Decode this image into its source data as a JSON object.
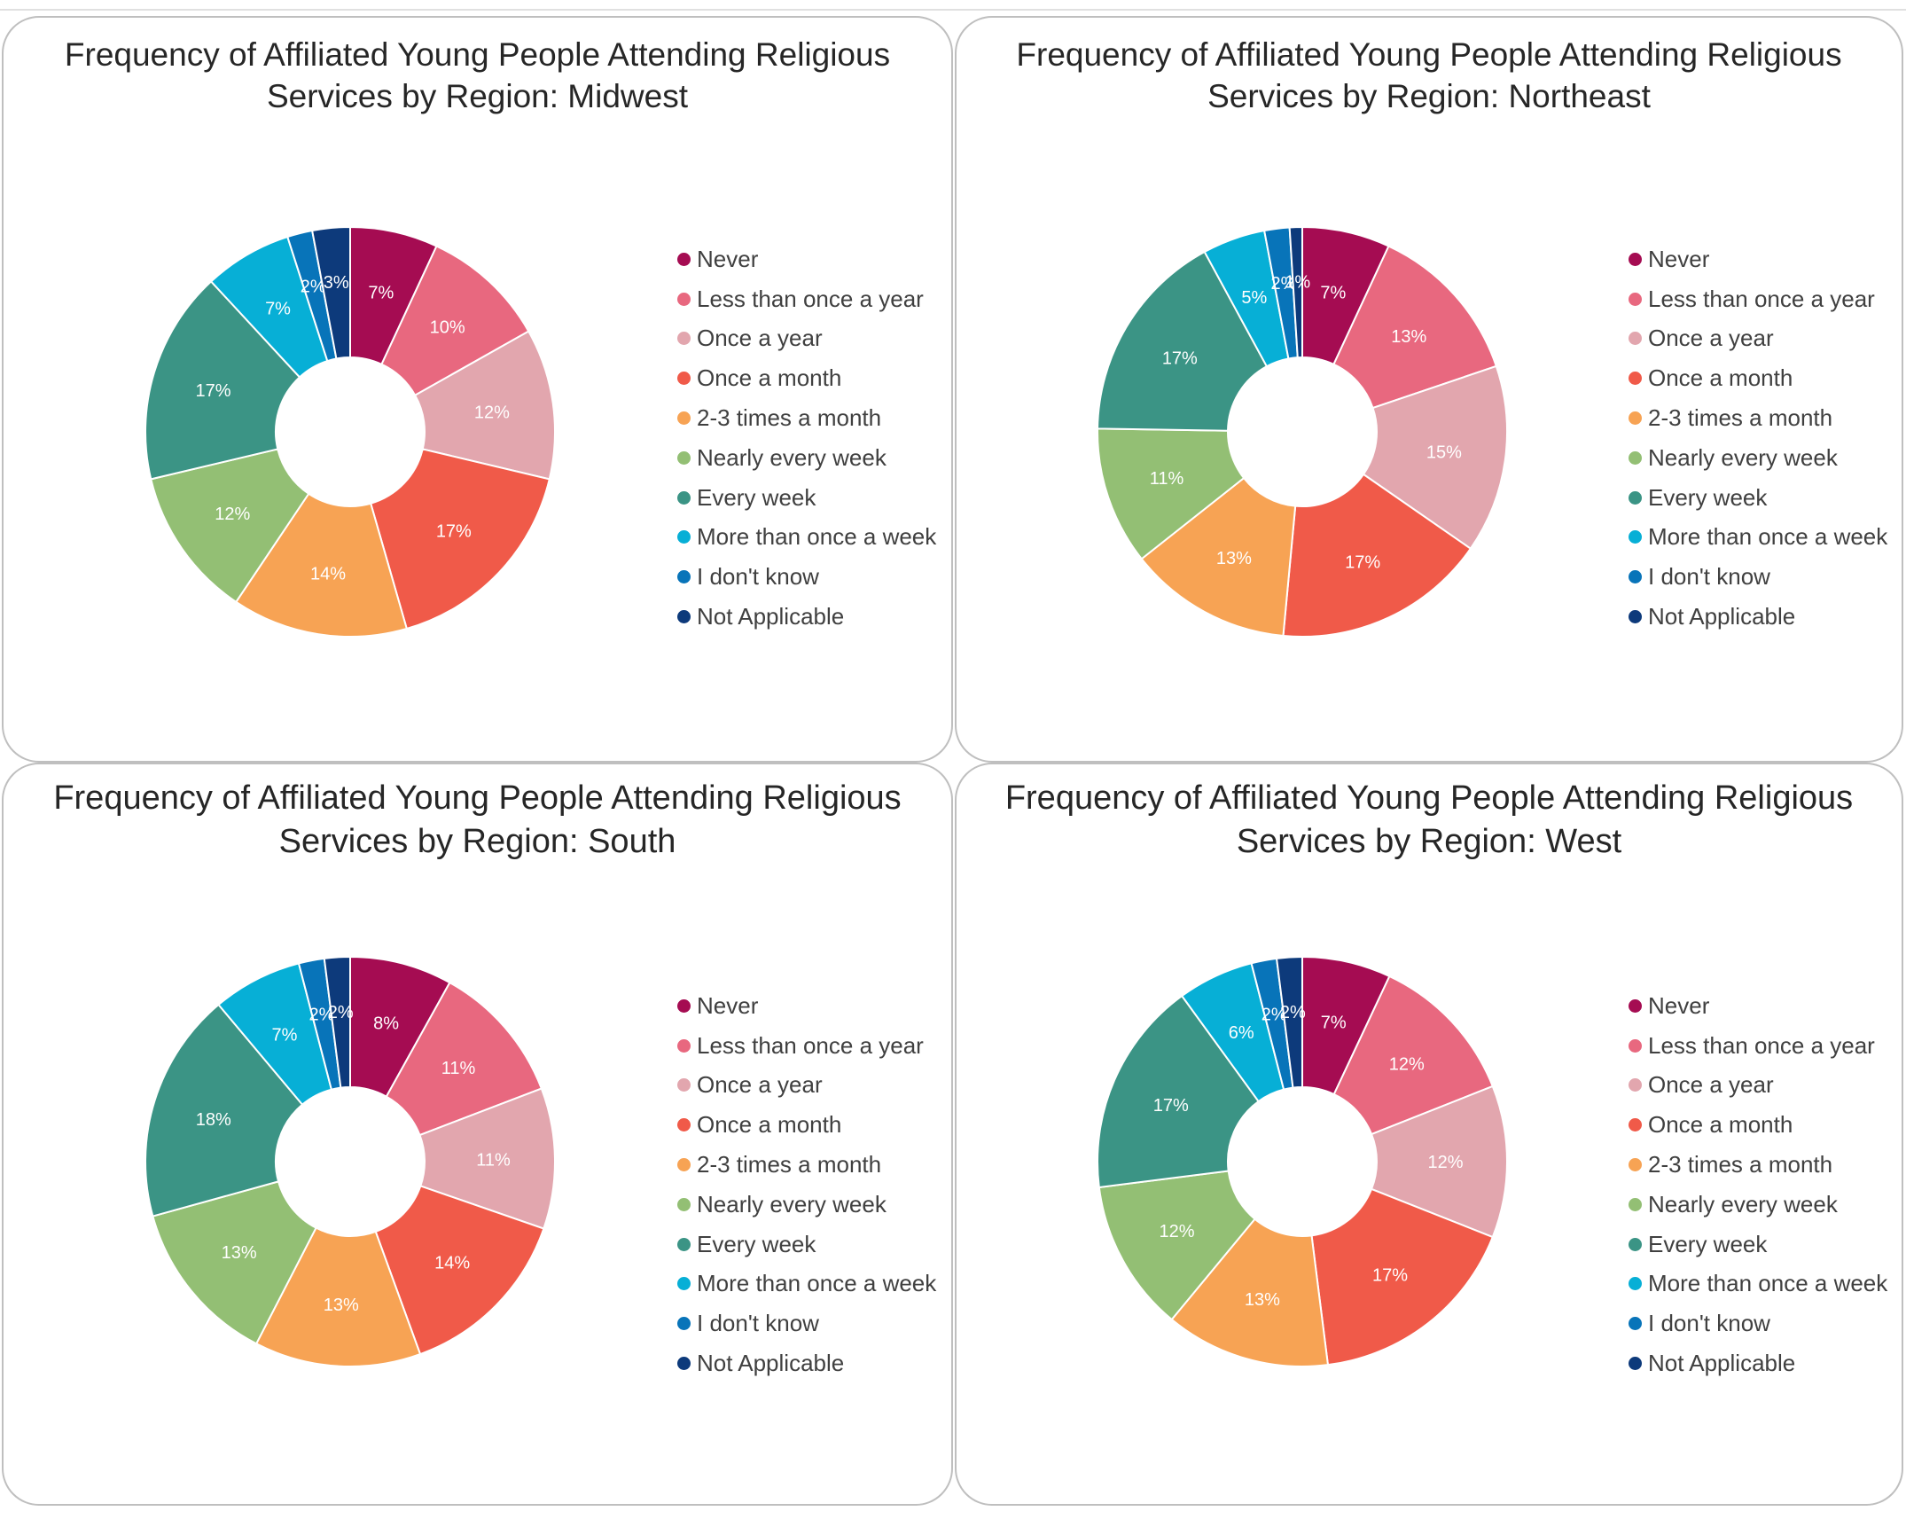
{
  "chart_data": [
    {
      "type": "pie",
      "title": "Frequency of Affiliated Young People Attending Religious Services by Region: Midwest",
      "title_lines": [
        "Frequency of Affiliated Young People Attending Religious",
        "Services by Region: Midwest"
      ],
      "categories": [
        "Never",
        "Less than once a year",
        "Once a year",
        "Once a month",
        "2-3 times a month",
        "Nearly every week",
        "Every week",
        "More than once a week",
        "I don't know",
        "Not Applicable"
      ],
      "values": [
        7,
        10,
        12,
        17,
        14,
        12,
        17,
        7,
        2,
        3
      ],
      "labels": [
        "7%",
        "10%",
        "12%",
        "17%",
        "14%",
        "12%",
        "17%",
        "7%",
        "2%",
        "3%"
      ],
      "legend_position": "right"
    },
    {
      "type": "pie",
      "title": "Frequency of Affiliated Young People Attending Religious Services by Region: Northeast",
      "title_lines": [
        "Frequency of Affiliated Young People Attending Religious",
        "Services by Region: Northeast"
      ],
      "categories": [
        "Never",
        "Less than once a year",
        "Once a year",
        "Once a month",
        "2-3 times a month",
        "Nearly every week",
        "Every week",
        "More than once a week",
        "I don't know",
        "Not Applicable"
      ],
      "values": [
        7,
        13,
        15,
        17,
        13,
        11,
        17,
        5,
        2,
        1
      ],
      "labels": [
        "7%",
        "13%",
        "15%",
        "17%",
        "13%",
        "11%",
        "17%",
        "5%",
        "2%",
        "1%"
      ],
      "legend_position": "right"
    },
    {
      "type": "pie",
      "title": "Frequency of Affiliated Young People Attending Religious Services by Region: South",
      "title_lines": [
        "Frequency of Affiliated Young People Attending Religious",
        "Services by Region: South"
      ],
      "categories": [
        "Never",
        "Less than once a year",
        "Once a year",
        "Once a month",
        "2-3 times a month",
        "Nearly every week",
        "Every week",
        "More than once a week",
        "I don't know",
        "Not Applicable"
      ],
      "values": [
        8,
        11,
        11,
        14,
        13,
        13,
        18,
        7,
        2,
        2
      ],
      "labels": [
        "8%",
        "11%",
        "11%",
        "14%",
        "13%",
        "13%",
        "18%",
        "7%",
        "2%",
        "2%"
      ],
      "legend_position": "right"
    },
    {
      "type": "pie",
      "title": "Frequency of Affiliated Young People Attending Religious Services by Region: West",
      "title_lines": [
        "Frequency of Affiliated Young People Attending Religious",
        "Services by Region: West"
      ],
      "categories": [
        "Never",
        "Less than once a year",
        "Once a year",
        "Once a month",
        "2-3 times a month",
        "Nearly every week",
        "Every week",
        "More than once a week",
        "I don't know",
        "Not Applicable"
      ],
      "values": [
        7,
        12,
        12,
        17,
        13,
        12,
        17,
        6,
        2,
        2
      ],
      "labels": [
        "7%",
        "12%",
        "12%",
        "17%",
        "13%",
        "12%",
        "17%",
        "6%",
        "2%",
        "2%"
      ],
      "legend_position": "right"
    }
  ],
  "colors": [
    "#a50c52",
    "#e8687f",
    "#e2a6ae",
    "#f05a49",
    "#f7a354",
    "#93bf74",
    "#3b9485",
    "#07afd6",
    "#0874b9",
    "#0d3a7b"
  ],
  "label_colors": [
    "#ffffff",
    "#ffffff",
    "#ffffff",
    "#ffffff",
    "#ffffff",
    "#ffffff",
    "#ffffff",
    "#ffffff",
    "#ffffff",
    "#ffffff"
  ]
}
